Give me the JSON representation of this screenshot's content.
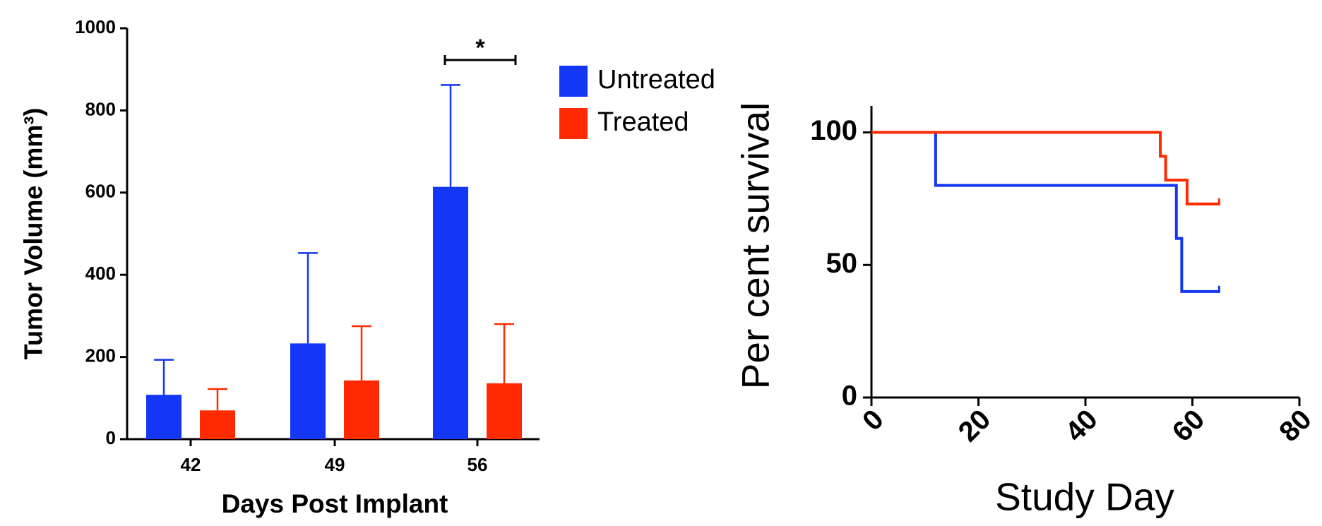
{
  "chart_data": [
    {
      "type": "bar",
      "x_label": "Days Post Implant",
      "y_label": "Tumor Volume (mm³)",
      "categories": [
        "42",
        "49",
        "56"
      ],
      "series": [
        {
          "name": "Untreated",
          "color": "#1436f5",
          "values": [
            108,
            233,
            614
          ],
          "errors": [
            85,
            220,
            248
          ]
        },
        {
          "name": "Treated",
          "color": "#ff2a00",
          "values": [
            70,
            143,
            136
          ],
          "errors": [
            52,
            132,
            144
          ]
        }
      ],
      "ylim": [
        0,
        1000
      ],
      "yticks": [
        0,
        200,
        400,
        600,
        800,
        1000
      ],
      "annotation": "*"
    },
    {
      "type": "step",
      "x_label": "Study Day",
      "y_label": "Per cent survival",
      "series": [
        {
          "color": "#1436f5",
          "x": [
            0,
            12,
            12,
            57,
            57,
            58,
            58,
            65
          ],
          "values": [
            100,
            100,
            80,
            80,
            60,
            60,
            40,
            40
          ]
        },
        {
          "color": "#ff2a00",
          "x": [
            0,
            54,
            54,
            55,
            55,
            59,
            59,
            65
          ],
          "values": [
            100,
            100,
            91,
            91,
            82,
            82,
            73,
            73
          ]
        }
      ],
      "xlim": [
        0,
        80
      ],
      "xticks": [
        0,
        20,
        40,
        60,
        80
      ],
      "ylim": [
        0,
        110
      ],
      "yticks": [
        0,
        50,
        100
      ]
    }
  ]
}
